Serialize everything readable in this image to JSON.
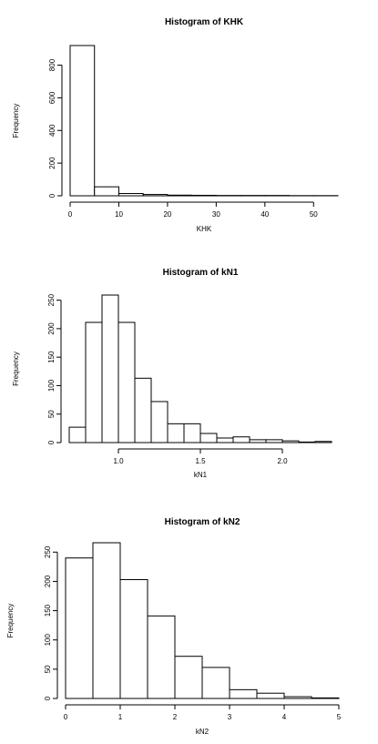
{
  "chart_data": [
    {
      "type": "bar",
      "title": "Histogram of KHK",
      "xlabel": "KHK",
      "ylabel": "Frequency",
      "bin_edges": [
        0,
        5,
        10,
        15,
        20,
        25,
        30,
        35,
        40,
        45,
        50,
        55
      ],
      "values": [
        920,
        55,
        14,
        8,
        4,
        3,
        2,
        2,
        2,
        1,
        1
      ],
      "xticks": [
        0,
        10,
        20,
        30,
        40,
        50
      ],
      "yticks": [
        0,
        200,
        400,
        600,
        800
      ],
      "xlim": [
        0,
        55
      ],
      "ylim": [
        0,
        920
      ]
    },
    {
      "type": "bar",
      "title": "Histogram of kN1",
      "xlabel": "kN1",
      "ylabel": "Frequency",
      "bin_edges": [
        0.7,
        0.8,
        0.9,
        1.0,
        1.1,
        1.2,
        1.3,
        1.4,
        1.5,
        1.6,
        1.7,
        1.8,
        1.9,
        2.0,
        2.1,
        2.2,
        2.3
      ],
      "values": [
        27,
        211,
        259,
        211,
        113,
        72,
        33,
        33,
        16,
        8,
        10,
        5,
        5,
        3,
        1,
        2
      ],
      "xticks": [
        1.0,
        1.5,
        2.0
      ],
      "yticks": [
        0,
        50,
        100,
        150,
        200,
        250
      ],
      "xlim": [
        0.7,
        2.3
      ],
      "ylim": [
        0,
        259
      ]
    },
    {
      "type": "bar",
      "title": "Histogram of kN2",
      "xlabel": "kN2",
      "ylabel": "Frequency",
      "bin_edges": [
        0,
        0.5,
        1.0,
        1.5,
        2.0,
        2.5,
        3.0,
        3.5,
        4.0,
        4.5,
        5.0
      ],
      "values": [
        240,
        266,
        203,
        141,
        72,
        53,
        15,
        9,
        3,
        1
      ],
      "xticks": [
        0,
        1,
        2,
        3,
        4,
        5
      ],
      "yticks": [
        0,
        50,
        100,
        150,
        200,
        250
      ],
      "xlim": [
        0,
        5
      ],
      "ylim": [
        0,
        266
      ]
    }
  ]
}
